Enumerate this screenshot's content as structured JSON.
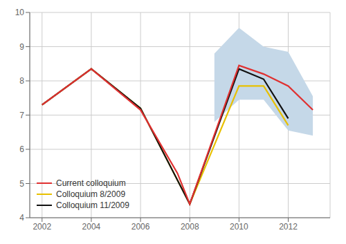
{
  "chart_data": {
    "type": "line",
    "series": [
      {
        "name": "Current colloquium",
        "color": "#e03030",
        "x": [
          2002,
          2004,
          2006,
          2007.5,
          2008,
          2010,
          2011,
          2012,
          2013
        ],
        "values": [
          7.3,
          8.35,
          7.15,
          5.3,
          4.4,
          8.45,
          8.2,
          7.85,
          7.15
        ]
      },
      {
        "name": "Colloquium 8/2009",
        "color": "#e8c000",
        "x": [
          2002,
          2004,
          2006,
          2008,
          2010,
          2011,
          2012
        ],
        "values": [
          7.3,
          8.35,
          7.2,
          4.4,
          7.85,
          7.85,
          6.7
        ]
      },
      {
        "name": "Colloquium 11/2009",
        "color": "#111111",
        "x": [
          2002,
          2004,
          2006,
          2008,
          2010,
          2011,
          2012
        ],
        "values": [
          7.3,
          8.35,
          7.2,
          4.4,
          8.35,
          8.05,
          6.9
        ]
      }
    ],
    "band": {
      "x": [
        2009,
        2010,
        2011,
        2012,
        2013
      ],
      "upper": [
        8.8,
        9.55,
        9.0,
        8.85,
        7.55
      ],
      "lower": [
        6.8,
        7.45,
        7.45,
        6.55,
        6.4
      ],
      "color": "#c5d8e8"
    },
    "xlim": [
      2001.5,
      2013.7
    ],
    "xticks": [
      2002,
      2004,
      2006,
      2008,
      2010,
      2012
    ],
    "ylim": [
      4,
      10
    ],
    "yticks": [
      4,
      5,
      6,
      7,
      8,
      9,
      10
    ],
    "grid": true,
    "legend": "lower left"
  }
}
